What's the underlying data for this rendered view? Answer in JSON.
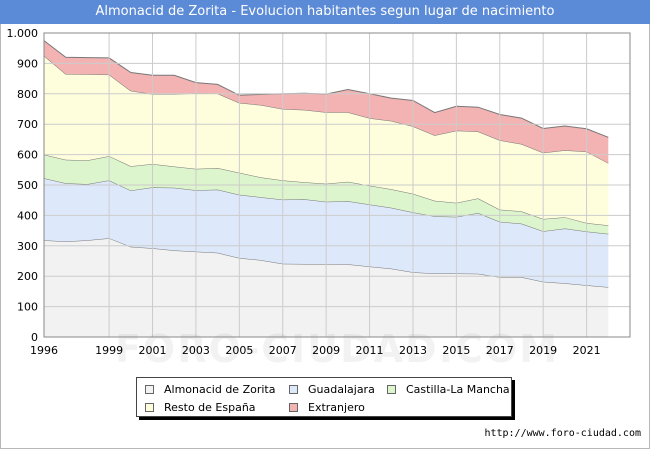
{
  "title": "Almonacid de Zorita - Evolucion habitantes segun lugar de nacimiento",
  "watermark": "FORO-CIUDAD.COM",
  "footer": "http://www.foro-ciudad.com",
  "chart_data": {
    "type": "area",
    "stacked": true,
    "x": [
      1996,
      1997,
      1998,
      1999,
      2000,
      2001,
      2002,
      2003,
      2004,
      2005,
      2006,
      2007,
      2008,
      2009,
      2010,
      2011,
      2012,
      2013,
      2014,
      2015,
      2016,
      2017,
      2018,
      2019,
      2020,
      2021,
      2022
    ],
    "x_ticks": [
      1996,
      1999,
      2001,
      2003,
      2005,
      2007,
      2009,
      2011,
      2013,
      2015,
      2017,
      2019,
      2021
    ],
    "y_ticks": [
      0,
      100,
      200,
      300,
      400,
      500,
      600,
      700,
      800,
      900,
      1000
    ],
    "y_tick_labels": [
      "0",
      "100",
      "200",
      "300",
      "400",
      "500",
      "600",
      "700",
      "800",
      "900",
      "1.000"
    ],
    "ylim": [
      0,
      1000
    ],
    "xlim": [
      1996,
      2023
    ],
    "grid": true,
    "legend_position": "bottom",
    "series": [
      {
        "name": "Almonacid de Zorita",
        "color": "#f2f2f2",
        "values": [
          318,
          314,
          318,
          325,
          297,
          292,
          285,
          281,
          277,
          260,
          253,
          241,
          240,
          240,
          239,
          232,
          225,
          213,
          209,
          209,
          208,
          197,
          197,
          182,
          177,
          170,
          164
        ]
      },
      {
        "name": "Guadalajara",
        "color": "#dde9fb",
        "values": [
          204,
          192,
          185,
          190,
          185,
          200,
          206,
          202,
          208,
          208,
          207,
          211,
          213,
          205,
          208,
          204,
          200,
          197,
          188,
          186,
          200,
          182,
          176,
          166,
          180,
          177,
          175
        ]
      },
      {
        "name": "Castilla-La Mancha",
        "color": "#ddf5cc",
        "values": [
          78,
          77,
          78,
          80,
          80,
          77,
          70,
          70,
          71,
          72,
          65,
          63,
          56,
          59,
          64,
          62,
          61,
          61,
          51,
          46,
          48,
          40,
          40,
          40,
          37,
          28,
          28
        ]
      },
      {
        "name": "Resto de España",
        "color": "#fefedd",
        "values": [
          325,
          282,
          283,
          268,
          248,
          230,
          238,
          249,
          245,
          230,
          238,
          235,
          238,
          235,
          228,
          222,
          225,
          222,
          215,
          238,
          220,
          228,
          222,
          218,
          220,
          235,
          205
        ]
      },
      {
        "name": "Extranjero",
        "color": "#f4b3b3",
        "values": [
          50,
          55,
          55,
          55,
          60,
          62,
          62,
          35,
          30,
          25,
          35,
          50,
          55,
          60,
          75,
          80,
          75,
          85,
          75,
          80,
          80,
          85,
          85,
          80,
          80,
          75,
          85
        ]
      }
    ]
  }
}
